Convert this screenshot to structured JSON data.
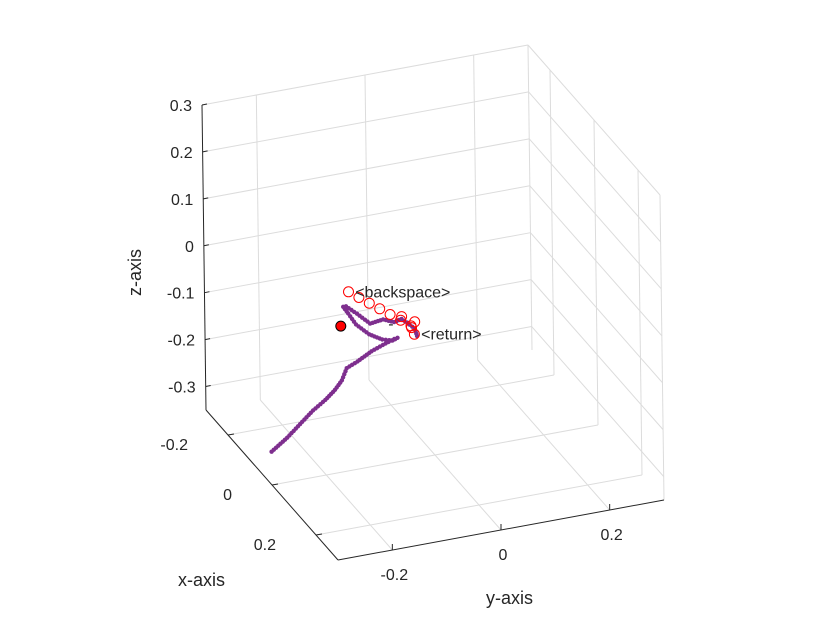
{
  "chart_data": {
    "type": "scatter",
    "projection": "3d",
    "grid": true,
    "xlabel": "x-axis",
    "ylabel": "y-axis",
    "zlabel": "z-axis",
    "xlim": [
      -0.3,
      0.3
    ],
    "ylim": [
      -0.3,
      0.3
    ],
    "zlim": [
      -0.35,
      0.3
    ],
    "xticks": [
      "-0.2",
      "0",
      "0.2"
    ],
    "yticks": [
      "-0.2",
      "0",
      "0.2"
    ],
    "zticks": [
      "0.3",
      "0.2",
      "0.1",
      "0",
      "-0.1",
      "-0.2",
      "-0.3"
    ],
    "colors": {
      "trajectory": "#7e2f8e",
      "marker_ring": "#ff0000",
      "start_marker": "#ff0000"
    },
    "trajectory": {
      "x": [
        -0.05,
        -0.04,
        -0.03,
        -0.02,
        0.0,
        0.02,
        0.04,
        0.05,
        0.05,
        0.04,
        0.03,
        0.02,
        0.01,
        0.0,
        -0.01,
        -0.02,
        -0.03,
        -0.04,
        -0.05,
        -0.05,
        -0.05,
        -0.05,
        -0.04,
        -0.03,
        -0.03,
        -0.02,
        -0.02,
        -0.01,
        0.0,
        0.0
      ],
      "y": [
        -0.28,
        -0.255,
        -0.235,
        -0.215,
        -0.2,
        -0.19,
        -0.185,
        -0.18,
        -0.16,
        -0.13,
        -0.1,
        -0.08,
        -0.07,
        -0.075,
        -0.09,
        -0.11,
        -0.13,
        -0.14,
        -0.145,
        -0.14,
        -0.13,
        -0.12,
        -0.1,
        -0.08,
        -0.06,
        -0.05,
        -0.04,
        -0.03,
        -0.03,
        -0.03
      ],
      "z": [
        -0.31,
        -0.28,
        -0.25,
        -0.22,
        -0.19,
        -0.16,
        -0.13,
        -0.1,
        -0.09,
        -0.08,
        -0.075,
        -0.075,
        -0.08,
        -0.09,
        -0.09,
        -0.08,
        -0.06,
        -0.04,
        -0.03,
        -0.03,
        -0.04,
        -0.05,
        -0.07,
        -0.06,
        -0.07,
        -0.06,
        -0.07,
        -0.08,
        -0.09,
        -0.09
      ]
    },
    "start_point": {
      "x": -0.05,
      "y": -0.15,
      "z": -0.07
    },
    "key_markers": {
      "x": [
        -0.05,
        -0.04,
        -0.03,
        -0.02,
        -0.01,
        0.0,
        0.01,
        0.0,
        -0.01,
        -0.02,
        0.0
      ],
      "y": [
        -0.135,
        -0.12,
        -0.105,
        -0.09,
        -0.075,
        -0.06,
        -0.045,
        -0.04,
        -0.03,
        -0.05,
        -0.035
      ],
      "z": [
        0.0,
        -0.01,
        -0.02,
        -0.03,
        -0.04,
        -0.05,
        -0.06,
        -0.07,
        -0.065,
        -0.055,
        -0.085
      ]
    },
    "annotations": [
      {
        "text": "<backspace>",
        "x": -0.05,
        "y": -0.13,
        "z": 0.0
      },
      {
        "text": "<return>",
        "x": 0.0,
        "y": -0.03,
        "z": -0.085
      },
      {
        "text": "-",
        "x": 0.0,
        "y": -0.09,
        "z": -0.05
      }
    ]
  }
}
